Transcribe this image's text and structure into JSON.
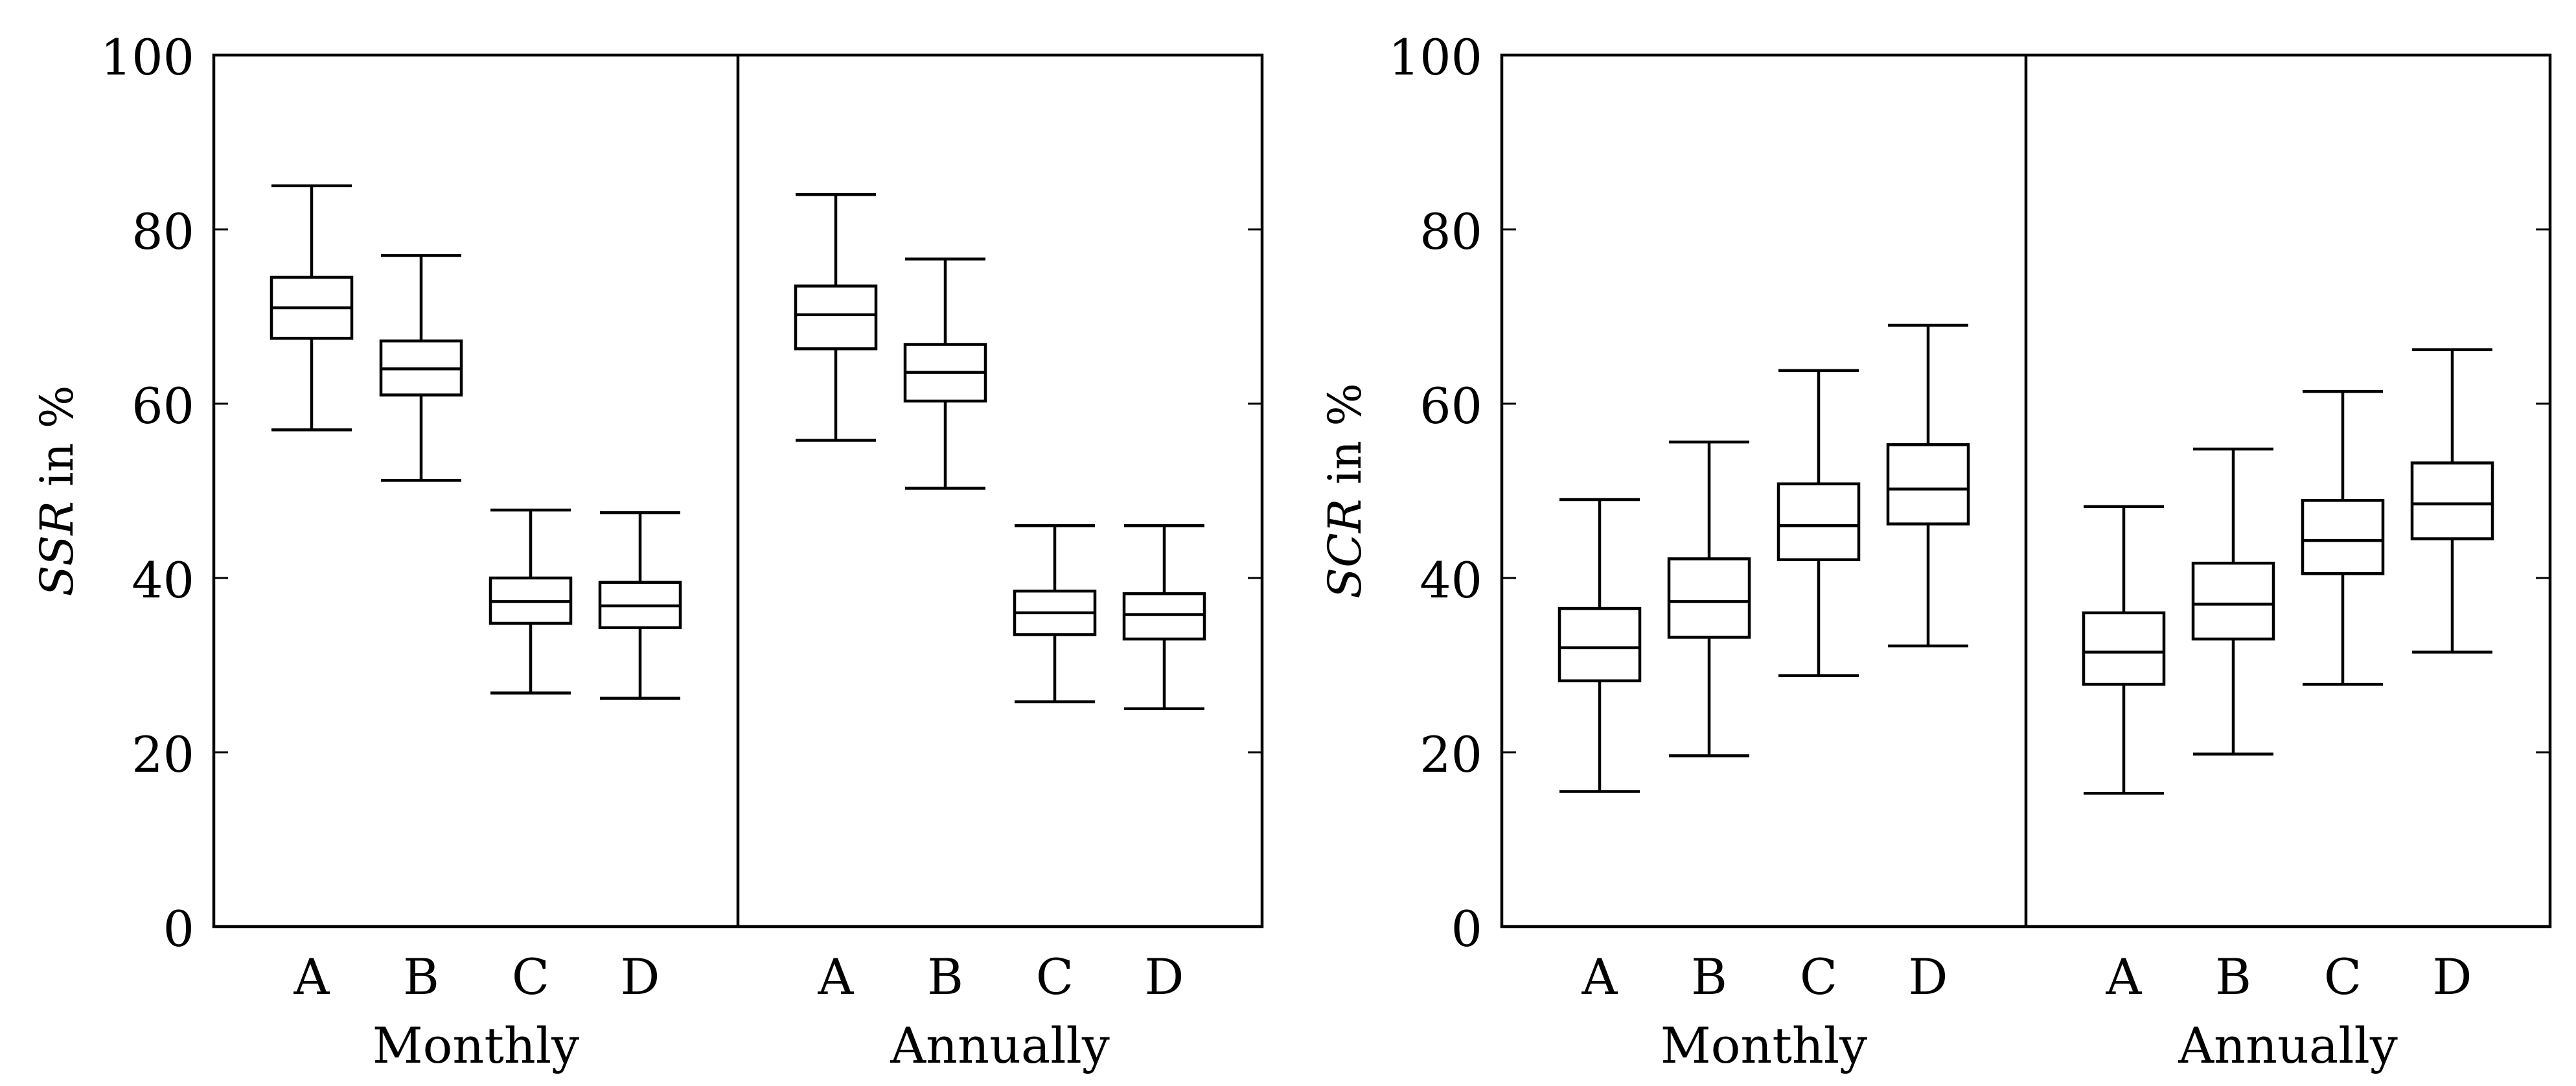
{
  "chart_data": [
    {
      "type": "boxplot",
      "ylabel_italic": "SSR",
      "ylabel_rest": " in %",
      "ylim": [
        0,
        100
      ],
      "yticks": [
        0,
        20,
        40,
        60,
        80,
        100
      ],
      "groups": [
        {
          "label": "Monthly",
          "categories": [
            "A",
            "B",
            "C",
            "D"
          ],
          "boxes": [
            {
              "min": 57,
              "q1": 67.5,
              "median": 71,
              "q3": 74.5,
              "max": 85
            },
            {
              "min": 51.2,
              "q1": 61,
              "median": 64,
              "q3": 67.2,
              "max": 77
            },
            {
              "min": 26.8,
              "q1": 34.8,
              "median": 37.3,
              "q3": 40,
              "max": 47.8
            },
            {
              "min": 26.2,
              "q1": 34.3,
              "median": 36.8,
              "q3": 39.5,
              "max": 47.5
            }
          ]
        },
        {
          "label": "Annually",
          "categories": [
            "A",
            "B",
            "C",
            "D"
          ],
          "boxes": [
            {
              "min": 55.8,
              "q1": 66.3,
              "median": 70.2,
              "q3": 73.5,
              "max": 84
            },
            {
              "min": 50.3,
              "q1": 60.3,
              "median": 63.6,
              "q3": 66.8,
              "max": 76.6
            },
            {
              "min": 25.8,
              "q1": 33.5,
              "median": 36,
              "q3": 38.5,
              "max": 46
            },
            {
              "min": 25,
              "q1": 33,
              "median": 35.8,
              "q3": 38.2,
              "max": 46
            }
          ]
        }
      ]
    },
    {
      "type": "boxplot",
      "ylabel_italic": "SCR",
      "ylabel_rest": " in %",
      "ylim": [
        0,
        100
      ],
      "yticks": [
        0,
        20,
        40,
        60,
        80,
        100
      ],
      "groups": [
        {
          "label": "Monthly",
          "categories": [
            "A",
            "B",
            "C",
            "D"
          ],
          "boxes": [
            {
              "min": 15.5,
              "q1": 28.2,
              "median": 32,
              "q3": 36.5,
              "max": 49
            },
            {
              "min": 19.6,
              "q1": 33.2,
              "median": 37.3,
              "q3": 42.2,
              "max": 55.6
            },
            {
              "min": 28.8,
              "q1": 42.1,
              "median": 46,
              "q3": 50.8,
              "max": 63.8
            },
            {
              "min": 32.2,
              "q1": 46.2,
              "median": 50.2,
              "q3": 55.3,
              "max": 69
            }
          ]
        },
        {
          "label": "Annually",
          "categories": [
            "A",
            "B",
            "C",
            "D"
          ],
          "boxes": [
            {
              "min": 15.3,
              "q1": 27.8,
              "median": 31.5,
              "q3": 36,
              "max": 48.2
            },
            {
              "min": 19.8,
              "q1": 33,
              "median": 37,
              "q3": 41.7,
              "max": 54.8
            },
            {
              "min": 27.8,
              "q1": 40.5,
              "median": 44.3,
              "q3": 48.9,
              "max": 61.4
            },
            {
              "min": 31.5,
              "q1": 44.5,
              "median": 48.5,
              "q3": 53.2,
              "max": 66.2
            }
          ]
        }
      ]
    }
  ]
}
